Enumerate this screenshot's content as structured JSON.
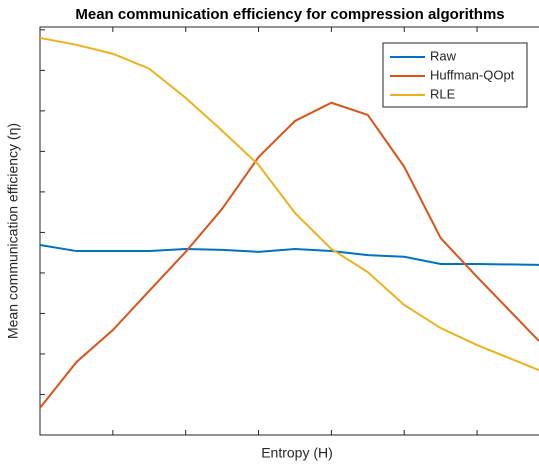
{
  "chart_data": {
    "type": "line",
    "title": "Mean communication efficiency for compression algorithms",
    "x_label": "Entropy (H)",
    "y_label": "Mean communication efficiency (η)",
    "x": [
      0,
      0.5,
      1,
      1.5,
      2,
      2.5,
      3,
      3.5,
      4,
      4.5,
      5,
      5.5,
      6,
      6.85
    ],
    "series": [
      {
        "name": "Raw",
        "color": "#0072bd",
        "values": [
          4.69,
          4.54,
          4.54,
          4.54,
          4.59,
          4.57,
          4.52,
          4.59,
          4.54,
          4.44,
          4.4,
          4.22,
          4.22,
          4.2
        ]
      },
      {
        "name": "Huffman-QOpt",
        "color": "#d95319",
        "values": [
          0.67,
          1.8,
          2.59,
          3.56,
          4.52,
          5.58,
          6.86,
          7.75,
          8.2,
          7.9,
          6.62,
          4.86,
          3.9,
          2.32
        ]
      },
      {
        "name": "RLE",
        "color": "#edb120",
        "values": [
          9.8,
          9.63,
          9.41,
          9.04,
          8.32,
          7.51,
          6.67,
          5.48,
          4.59,
          4.02,
          3.21,
          2.64,
          2.22,
          1.6
        ]
      }
    ],
    "xlim": [
      0,
      6.85
    ],
    "ylim": [
      0,
      10.07
    ],
    "xticks": [
      0,
      1,
      2,
      3,
      4,
      5,
      6
    ],
    "yticks": [
      1,
      2,
      3,
      4,
      5,
      6,
      7,
      8,
      9,
      10
    ],
    "legend": "top-right"
  }
}
